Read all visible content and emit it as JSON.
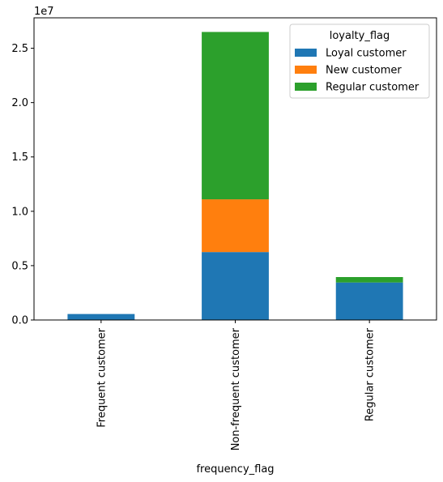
{
  "chart_data": {
    "type": "bar",
    "stacked": true,
    "categories": [
      "Frequent customer",
      "Non-frequent customer",
      "Regular customer"
    ],
    "series": [
      {
        "name": "Loyal customer",
        "color": "#1f77b4",
        "values": [
          550000,
          6250000,
          3450000
        ]
      },
      {
        "name": "New customer",
        "color": "#ff7f0e",
        "values": [
          0,
          4850000,
          0
        ]
      },
      {
        "name": "Regular customer",
        "color": "#2ca02c",
        "values": [
          0,
          15400000,
          500000
        ]
      }
    ],
    "xlabel": "frequency_flag",
    "ylabel": "",
    "ylim": [
      0,
      27800000
    ],
    "yticks": [
      0,
      5000000,
      10000000,
      15000000,
      20000000,
      25000000
    ],
    "ytick_labels": [
      "0.0",
      "0.5",
      "1.0",
      "1.5",
      "2.0",
      "2.5"
    ],
    "y_offset_label": "1e7",
    "legend": {
      "title": "loyalty_flag",
      "placement": "top-right"
    },
    "grid": false
  }
}
